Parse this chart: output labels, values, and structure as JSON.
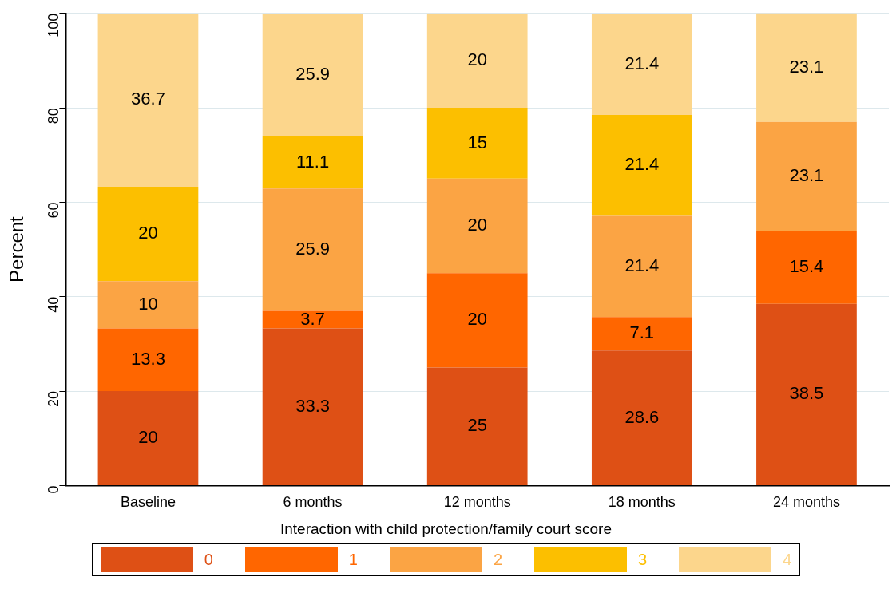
{
  "chart_data": {
    "type": "bar",
    "stacked": true,
    "ylabel": "Percent",
    "legend_title": "Interaction with child protection/family court score",
    "legend": "bottom",
    "grid": "y",
    "data_labels": true,
    "categories": [
      "Baseline",
      "6 months",
      "12 months",
      "18 months",
      "24 months"
    ],
    "ylim": [
      0,
      100
    ],
    "yticks": [
      0,
      20,
      40,
      60,
      80,
      100
    ],
    "series": [
      {
        "name": "0",
        "color": "#de5015",
        "values": [
          20,
          33.3,
          25,
          28.6,
          38.5
        ]
      },
      {
        "name": "1",
        "color": "#ff6600",
        "values": [
          13.3,
          3.7,
          20,
          7.1,
          15.4
        ]
      },
      {
        "name": "2",
        "color": "#fba444",
        "values": [
          10,
          25.9,
          20,
          21.4,
          23.1
        ]
      },
      {
        "name": "3",
        "color": "#fcbf00",
        "values": [
          20,
          11.1,
          15,
          21.4,
          null
        ]
      },
      {
        "name": "4",
        "color": "#fcd68c",
        "values": [
          36.7,
          25.9,
          20,
          21.4,
          23.1
        ]
      }
    ]
  }
}
